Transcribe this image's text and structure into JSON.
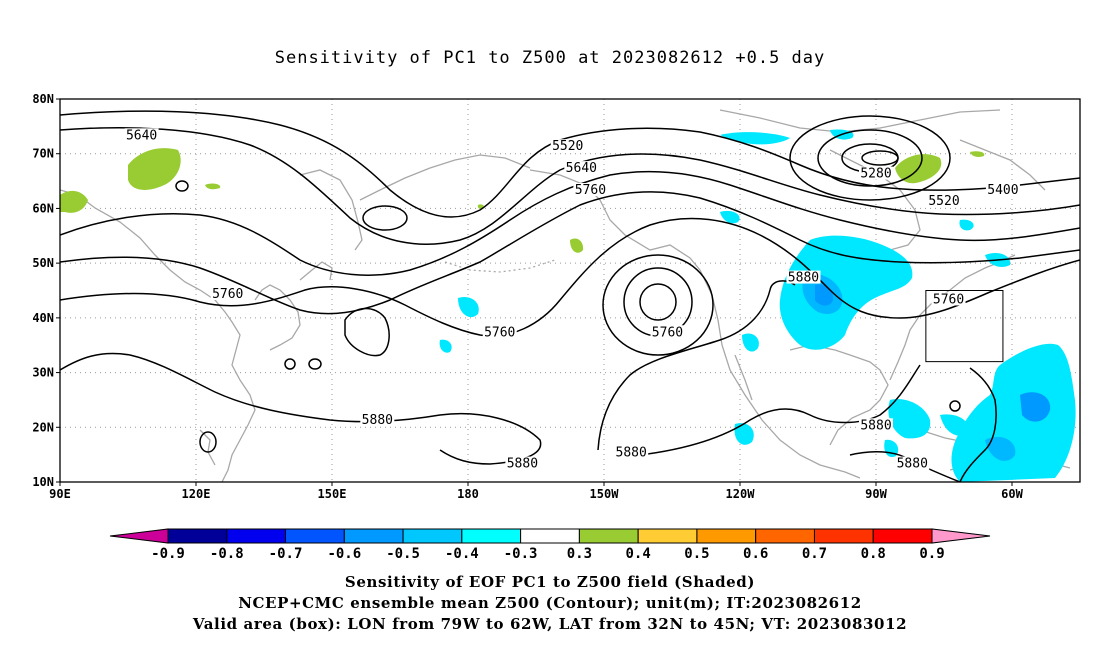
{
  "title": "Sensitivity of PC1 to Z500 at 2023082612 +0.5 day",
  "map": {
    "lat_labels": [
      "80N",
      "70N",
      "60N",
      "50N",
      "40N",
      "30N",
      "20N",
      "10N"
    ],
    "lon_labels": [
      "90E",
      "120E",
      "150E",
      "180",
      "150W",
      "120W",
      "90W",
      "60W"
    ],
    "contour_labels": [
      {
        "text": "5640",
        "lon": 108,
        "lat": 73
      },
      {
        "text": "5520",
        "lon": 202,
        "lat": 71
      },
      {
        "text": "5640",
        "lon": 205,
        "lat": 67
      },
      {
        "text": "5760",
        "lon": 207,
        "lat": 63
      },
      {
        "text": "5280",
        "lon": 270,
        "lat": 66
      },
      {
        "text": "5400",
        "lon": 298,
        "lat": 63
      },
      {
        "text": "5520",
        "lon": 285,
        "lat": 61
      },
      {
        "text": "5880",
        "lon": 254,
        "lat": 47
      },
      {
        "text": "5760",
        "lon": 286,
        "lat": 43
      },
      {
        "text": "5760",
        "lon": 127,
        "lat": 44
      },
      {
        "text": "5760",
        "lon": 187,
        "lat": 37
      },
      {
        "text": "5760",
        "lon": 224,
        "lat": 37
      },
      {
        "text": "5880",
        "lon": 160,
        "lat": 21
      },
      {
        "text": "5880",
        "lon": 270,
        "lat": 20
      },
      {
        "text": "5880",
        "lon": 192,
        "lat": 13
      },
      {
        "text": "5880",
        "lon": 216,
        "lat": 15
      },
      {
        "text": "5880",
        "lon": 278,
        "lat": 13
      }
    ],
    "valid_box": {
      "lon_min": -79,
      "lon_max": -62,
      "lat_min": 32,
      "lat_max": 45
    },
    "shade_colors": {
      "negative": "#00e8ff",
      "positive": "#99cc33"
    }
  },
  "colorbar": {
    "labels": [
      "-0.9",
      "-0.8",
      "-0.7",
      "-0.6",
      "-0.5",
      "-0.4",
      "-0.3",
      "0.3",
      "0.4",
      "0.5",
      "0.6",
      "0.7",
      "0.8",
      "0.9"
    ],
    "colors": [
      "#000099",
      "#0000ee",
      "#0055ff",
      "#0099ff",
      "#00c8ff",
      "#00ffff",
      "#ffffff",
      "#99cc33",
      "#ffcc33",
      "#ff9900",
      "#ff6600",
      "#ff3300",
      "#ff0000"
    ],
    "low_end_color": "#cc0099",
    "high_end_color": "#ff99cc"
  },
  "footer": {
    "line1": "Sensitivity of EOF PC1 to Z500 field (Shaded)",
    "line2": "NCEP+CMC ensemble mean Z500 (Contour); unit(m); IT:2023082612",
    "line3": "Valid area (box): LON from 79W to 62W, LAT from 32N to 45N; VT: 2023083012"
  }
}
